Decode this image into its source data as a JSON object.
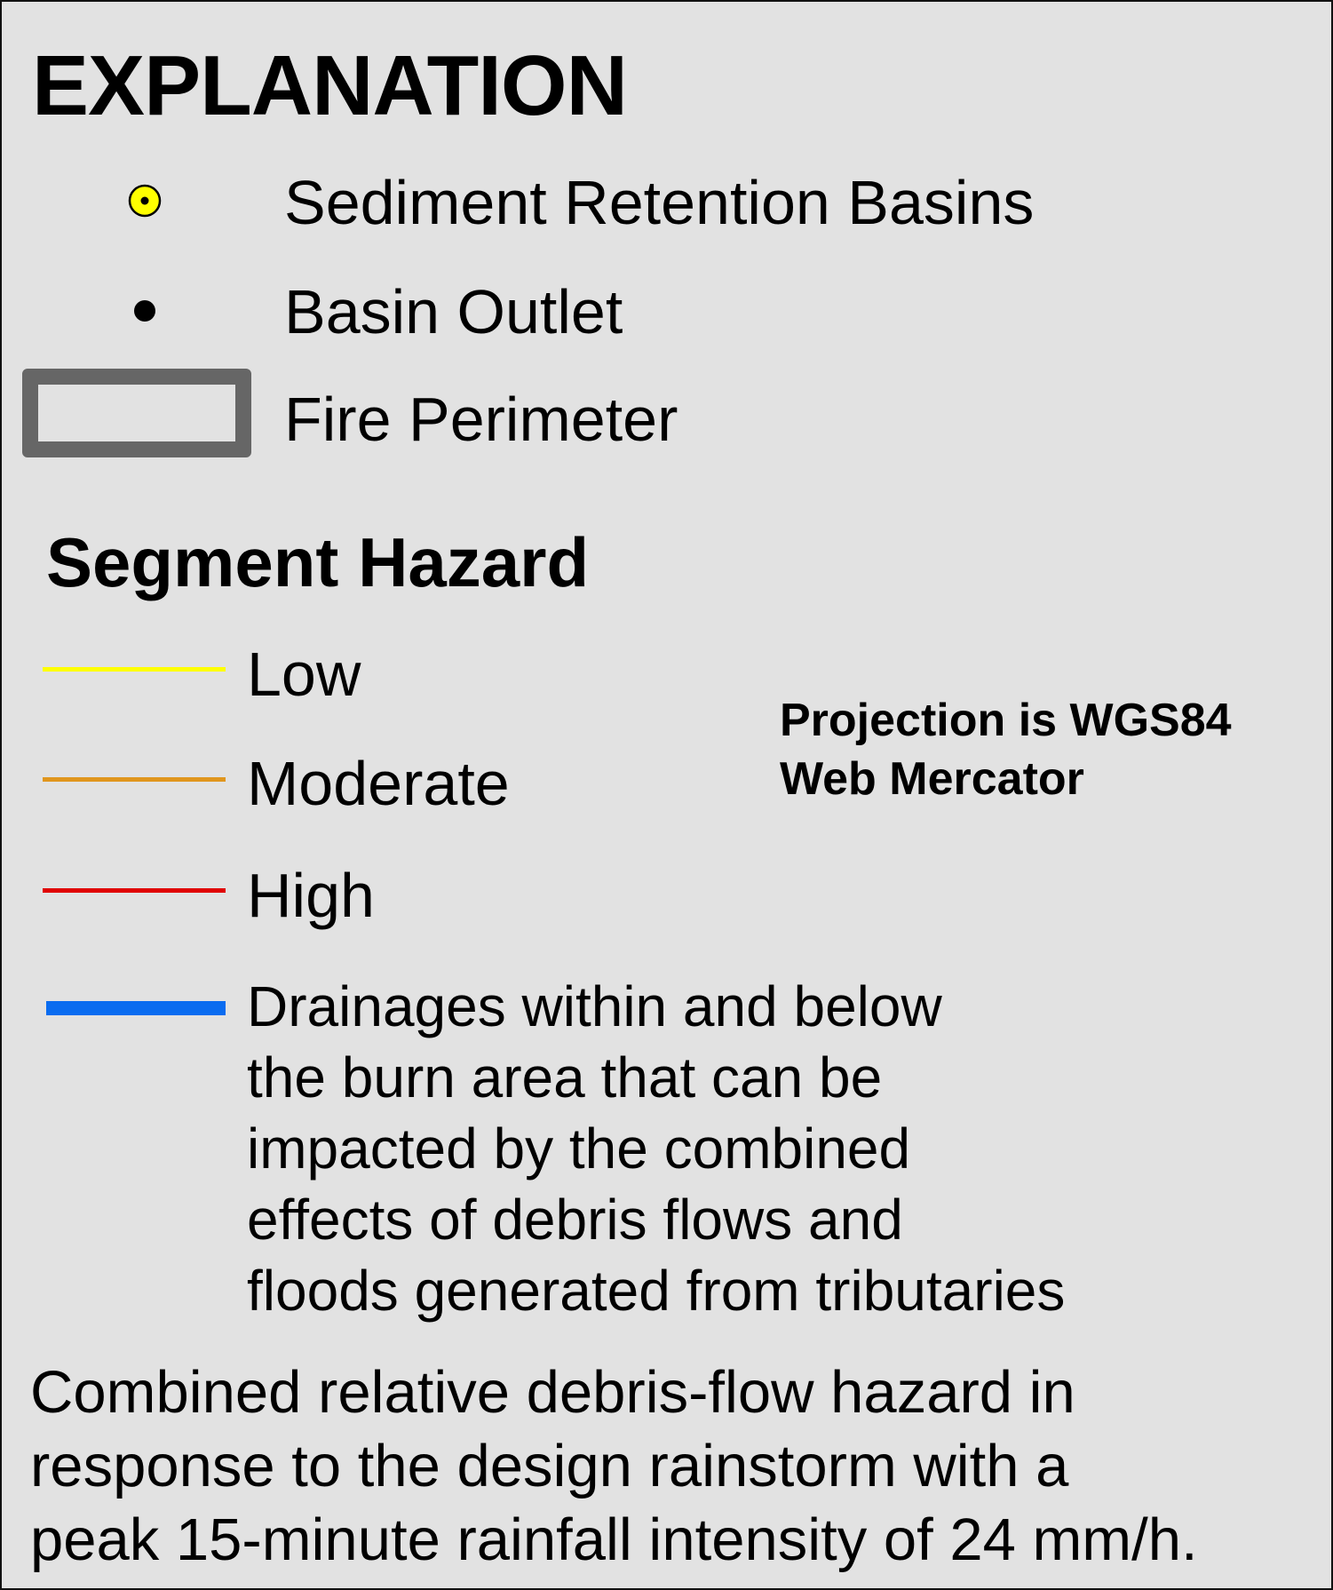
{
  "legend": {
    "title": "EXPLANATION",
    "items": [
      {
        "label": "Sediment Retention Basins",
        "symbol": "yellow-circle-dot-icon",
        "color": "#ffff00"
      },
      {
        "label": "Basin Outlet",
        "symbol": "black-dot-icon",
        "color": "#000000"
      },
      {
        "label": "Fire Perimeter",
        "symbol": "gray-rectangle-outline-icon",
        "color": "#666666"
      }
    ]
  },
  "segment_hazard": {
    "title": "Segment Hazard",
    "items": [
      {
        "label": "Low",
        "color": "#ffff00"
      },
      {
        "label": "Moderate",
        "color": "#e0961e"
      },
      {
        "label": "High",
        "color": "#e00000"
      }
    ],
    "drainages": {
      "color": "#0a6cf0",
      "lines": [
        "Drainages within and below",
        "the burn area that can be",
        "impacted by the combined",
        "effects of debris flows and",
        "floods generated from tributaries"
      ]
    }
  },
  "projection": {
    "lines": [
      "Projection is WGS84",
      "Web Mercator"
    ]
  },
  "caption": {
    "lines": [
      "Combined relative debris-flow hazard in",
      "response to the design rainstorm with a",
      "peak 15-minute rainfall intensity of 24 mm/h."
    ]
  }
}
